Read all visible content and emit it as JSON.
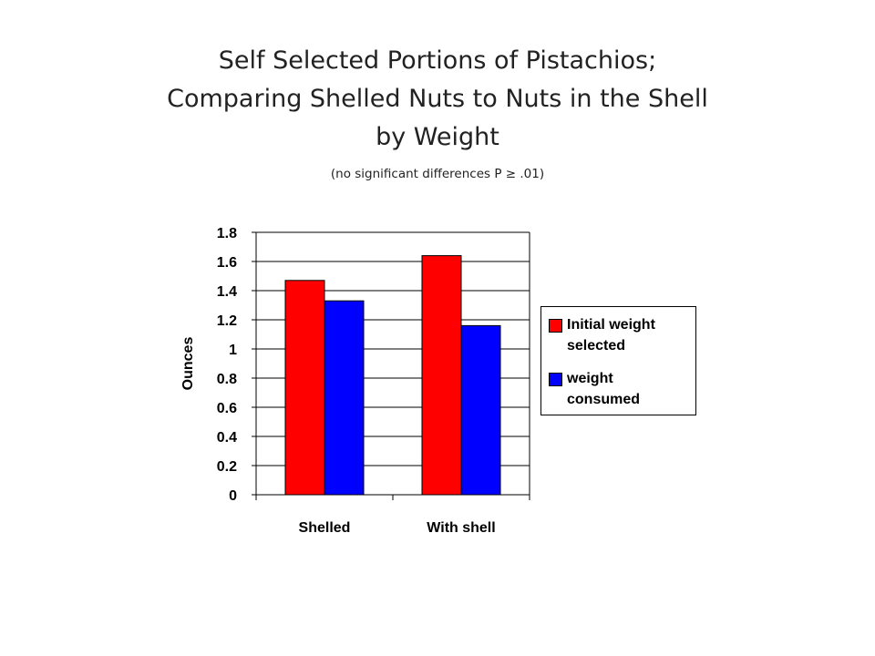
{
  "title_lines": [
    "Self Selected Portions of Pistachios;",
    "Comparing Shelled Nuts to Nuts in the Shell",
    "by Weight"
  ],
  "subtitle": "(no significant differences P ≥ .01)",
  "colors": {
    "initial": "#ff0000",
    "consumed": "#0000ff"
  },
  "legend": [
    {
      "label_lines": [
        "Initial weight",
        "selected"
      ],
      "color": "#ff0000"
    },
    {
      "label_lines": [
        "weight",
        "consumed"
      ],
      "color": "#0000ff"
    }
  ],
  "chart_data": {
    "type": "bar",
    "categories": [
      "Shelled",
      "With shell"
    ],
    "series": [
      {
        "name": "Initial weight selected",
        "values": [
          1.47,
          1.64
        ]
      },
      {
        "name": "weight consumed",
        "values": [
          1.33,
          1.16
        ]
      }
    ],
    "ylabel": "Ounces",
    "xlabel": "",
    "ylim": [
      0,
      1.8
    ],
    "yticks": [
      "0",
      "0.2",
      "0.4",
      "0.6",
      "0.8",
      "1",
      "1.2",
      "1.4",
      "1.6",
      "1.8"
    ],
    "grid": true,
    "legend_position": "right"
  }
}
